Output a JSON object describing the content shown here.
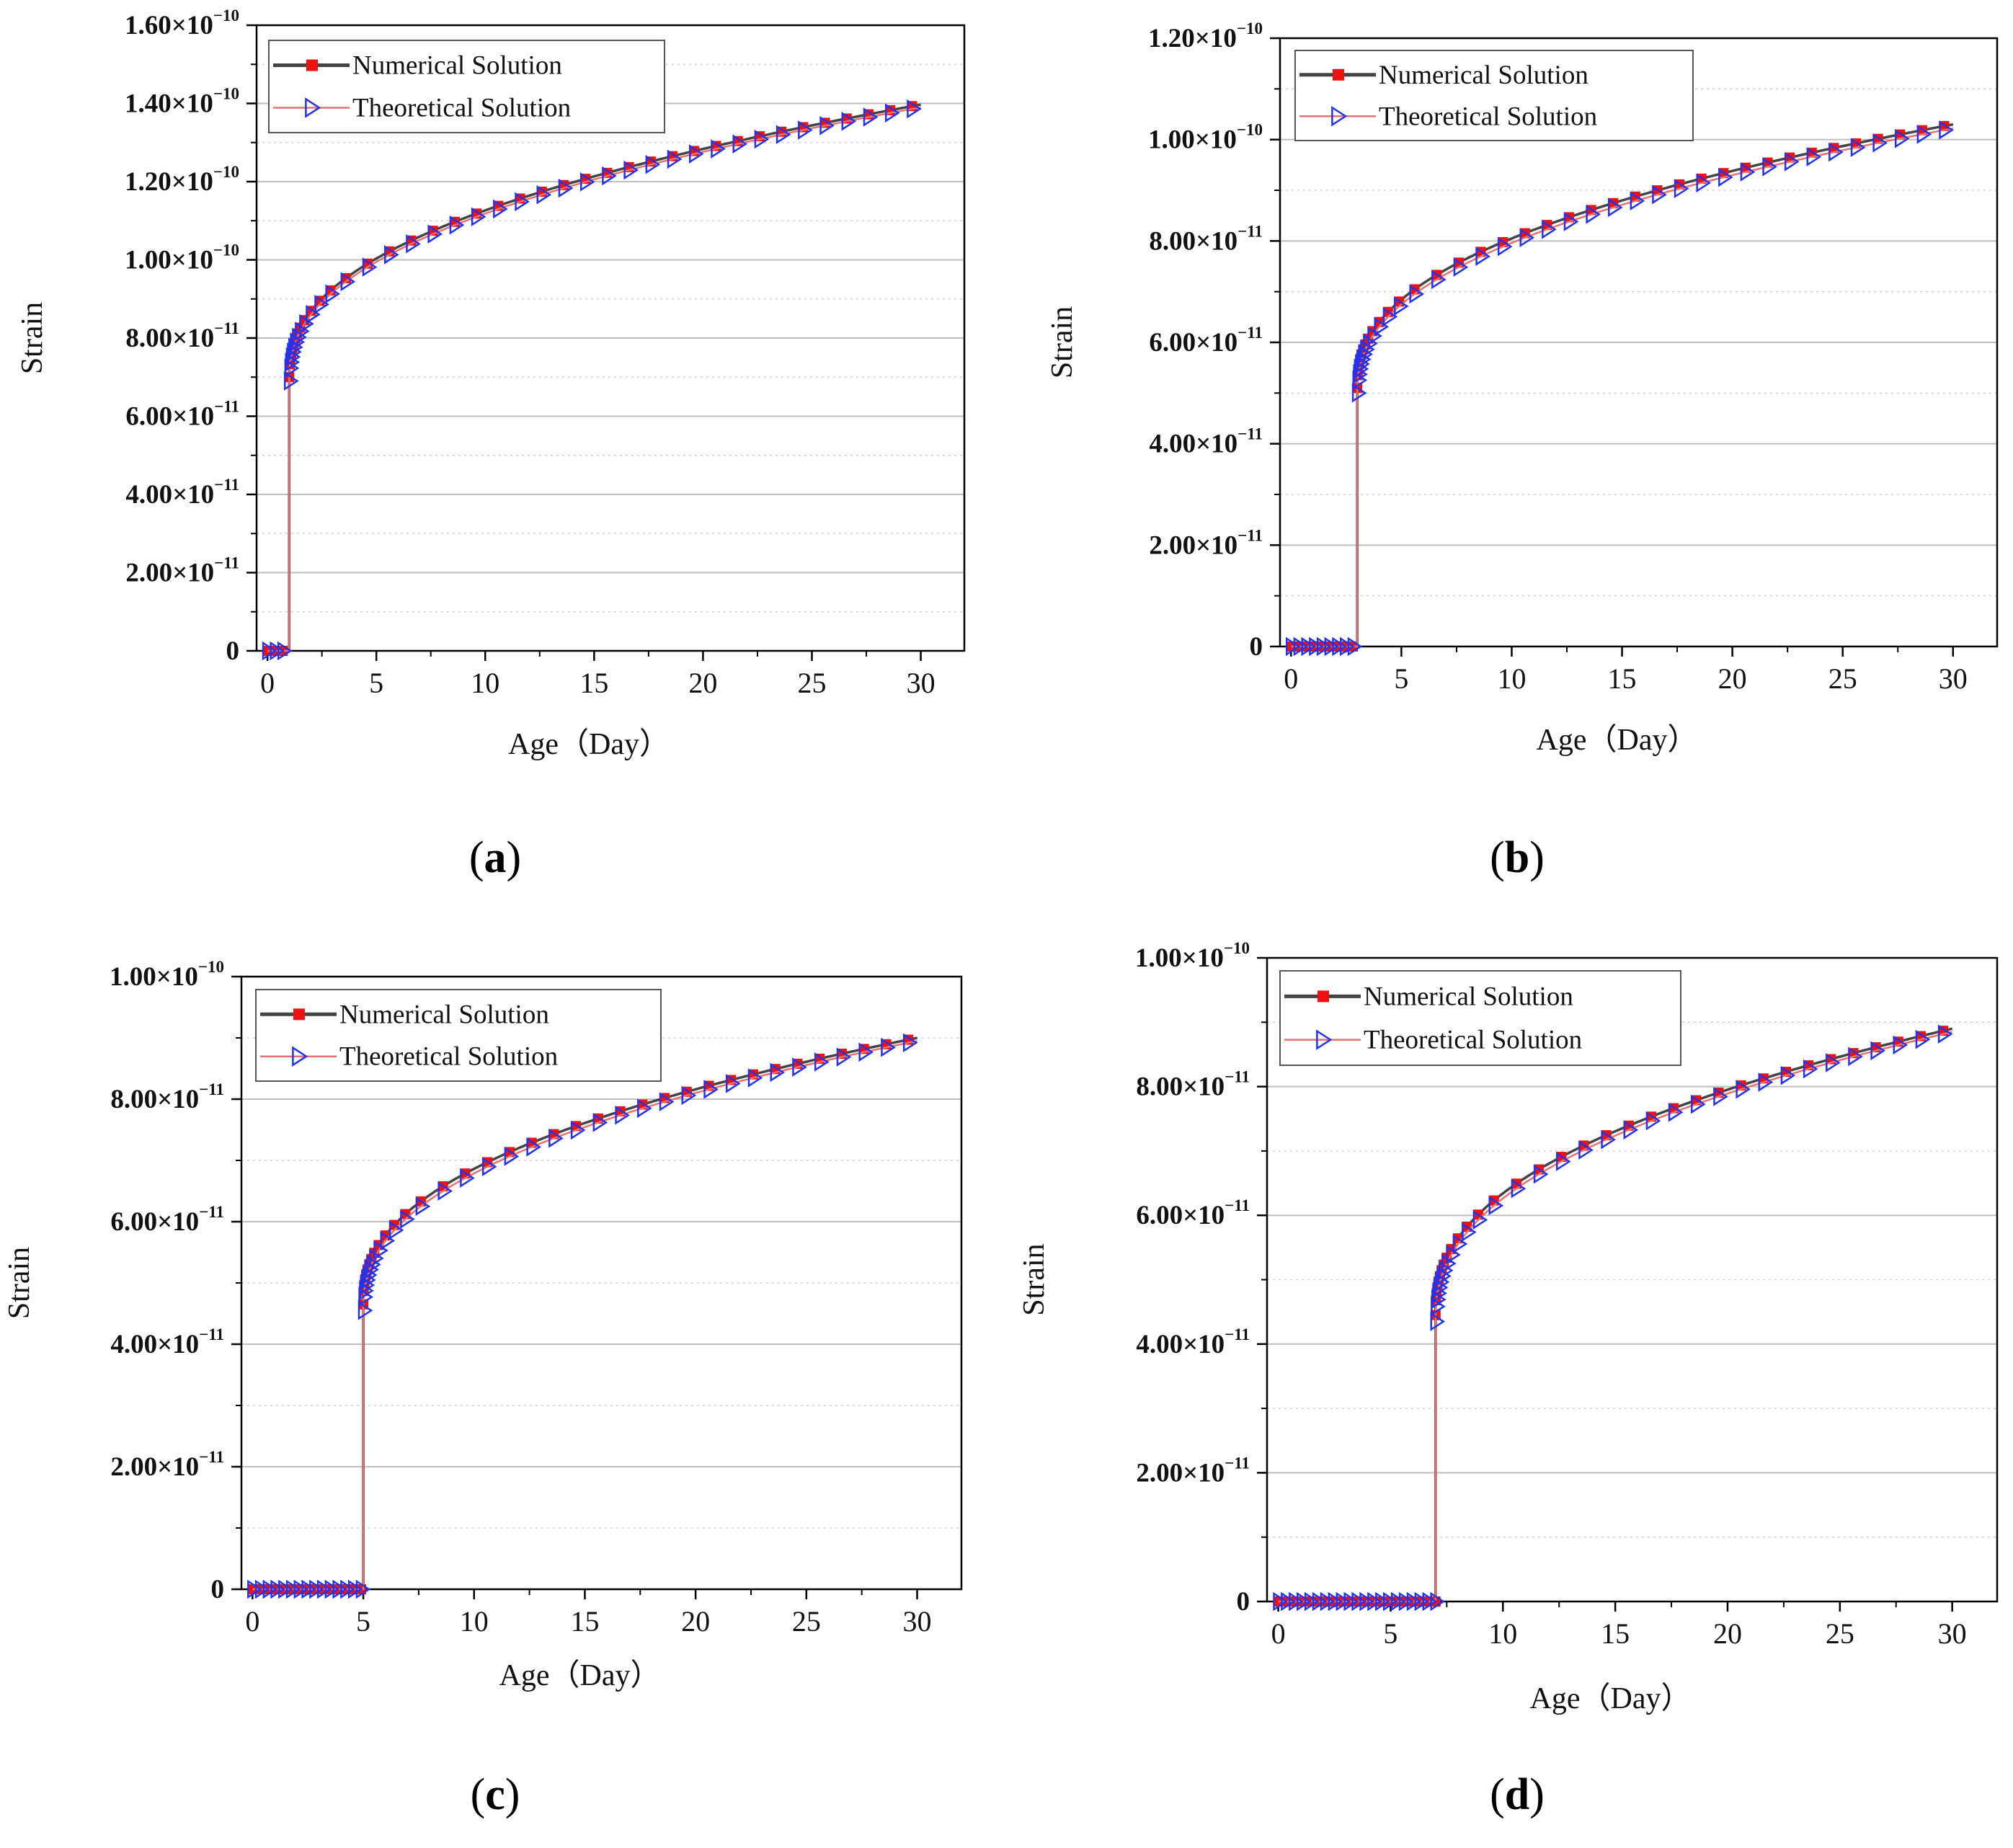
{
  "colors": {
    "numerical_line": "#444444",
    "numerical_marker": "#ee1111",
    "theoretical_line": "#e87070",
    "theoretical_marker": "#2233ee",
    "grid_major": "#bfbfbf",
    "grid_minor": "#d0d0d0",
    "axis": "#000000"
  },
  "chart_data": [
    {
      "type": "line",
      "panel_label": {
        "open": "(",
        "letter": "a",
        "close": ")"
      },
      "xlabel": "Age（Day）",
      "ylabel": "Strain",
      "xlim": [
        -0.5,
        32
      ],
      "ylim": [
        0,
        1.6e-10
      ],
      "xticks": [
        0,
        5,
        10,
        15,
        20,
        25,
        30
      ],
      "yticks": [
        {
          "value": 0,
          "mantissa": "0",
          "exp": ""
        },
        {
          "value": 2e-11,
          "mantissa": "2.00×10",
          "exp": "−11"
        },
        {
          "value": 4e-11,
          "mantissa": "4.00×10",
          "exp": "−11"
        },
        {
          "value": 6e-11,
          "mantissa": "6.00×10",
          "exp": "−11"
        },
        {
          "value": 8e-11,
          "mantissa": "8.00×10",
          "exp": "−11"
        },
        {
          "value": 1e-10,
          "mantissa": "1.00×10",
          "exp": "−10"
        },
        {
          "value": 1.2e-10,
          "mantissa": "1.20×10",
          "exp": "−10"
        },
        {
          "value": 1.4e-10,
          "mantissa": "1.40×10",
          "exp": "−10"
        },
        {
          "value": 1.6e-10,
          "mantissa": "1.60×10",
          "exp": "−10"
        }
      ],
      "grid": true,
      "legend_position": "top-left",
      "series": [
        {
          "name": "Numerical Solution",
          "load_age": 1,
          "initial": 7e-11,
          "final": 1.397e-10
        },
        {
          "name": "Theoretical Solution",
          "load_age": 1,
          "initial": 6.9e-11,
          "final": 1.39e-10
        }
      ]
    },
    {
      "type": "line",
      "panel_label": {
        "open": "(",
        "letter": "b",
        "close": ")"
      },
      "xlabel": "Age（Day）",
      "ylabel": "Strain",
      "xlim": [
        -0.5,
        32
      ],
      "ylim": [
        0,
        1.2e-10
      ],
      "xticks": [
        0,
        5,
        10,
        15,
        20,
        25,
        30
      ],
      "yticks": [
        {
          "value": 0,
          "mantissa": "0",
          "exp": ""
        },
        {
          "value": 2e-11,
          "mantissa": "2.00×10",
          "exp": "−11"
        },
        {
          "value": 4e-11,
          "mantissa": "4.00×10",
          "exp": "−11"
        },
        {
          "value": 6e-11,
          "mantissa": "6.00×10",
          "exp": "−11"
        },
        {
          "value": 8e-11,
          "mantissa": "8.00×10",
          "exp": "−11"
        },
        {
          "value": 1e-10,
          "mantissa": "1.00×10",
          "exp": "−10"
        },
        {
          "value": 1.2e-10,
          "mantissa": "1.20×10",
          "exp": "−10"
        }
      ],
      "grid": true,
      "legend_position": "top-left",
      "series": [
        {
          "name": "Numerical Solution",
          "load_age": 3,
          "initial": 5.1e-11,
          "final": 1.03e-10
        },
        {
          "name": "Theoretical Solution",
          "load_age": 3,
          "initial": 5e-11,
          "final": 1.022e-10
        }
      ]
    },
    {
      "type": "line",
      "panel_label": {
        "open": "(",
        "letter": "c",
        "close": ")"
      },
      "xlabel": "Age（Day）",
      "ylabel": "Strain",
      "xlim": [
        -0.5,
        32
      ],
      "ylim": [
        0,
        1e-10
      ],
      "xticks": [
        0,
        5,
        10,
        15,
        20,
        25,
        30
      ],
      "yticks": [
        {
          "value": 0,
          "mantissa": "0",
          "exp": ""
        },
        {
          "value": 2e-11,
          "mantissa": "2.00×10",
          "exp": "−11"
        },
        {
          "value": 4e-11,
          "mantissa": "4.00×10",
          "exp": "−11"
        },
        {
          "value": 6e-11,
          "mantissa": "6.00×10",
          "exp": "−11"
        },
        {
          "value": 8e-11,
          "mantissa": "8.00×10",
          "exp": "−11"
        },
        {
          "value": 1e-10,
          "mantissa": "1.00×10",
          "exp": "−10"
        }
      ],
      "grid": true,
      "legend_position": "top-left",
      "series": [
        {
          "name": "Numerical Solution",
          "load_age": 5,
          "initial": 4.65e-11,
          "final": 9e-11
        },
        {
          "name": "Theoretical Solution",
          "load_age": 5,
          "initial": 4.55e-11,
          "final": 8.95e-11
        }
      ]
    },
    {
      "type": "line",
      "panel_label": {
        "open": "(",
        "letter": "d",
        "close": ")"
      },
      "xlabel": "Age（Day）",
      "ylabel": "Strain",
      "xlim": [
        -0.5,
        32
      ],
      "ylim": [
        0,
        1e-10
      ],
      "xticks": [
        0,
        5,
        10,
        15,
        20,
        25,
        30
      ],
      "yticks": [
        {
          "value": 0,
          "mantissa": "0",
          "exp": ""
        },
        {
          "value": 2e-11,
          "mantissa": "2.00×10",
          "exp": "−11"
        },
        {
          "value": 4e-11,
          "mantissa": "4.00×10",
          "exp": "−11"
        },
        {
          "value": 6e-11,
          "mantissa": "6.00×10",
          "exp": "−11"
        },
        {
          "value": 8e-11,
          "mantissa": "8.00×10",
          "exp": "−11"
        },
        {
          "value": 1e-10,
          "mantissa": "1.00×10",
          "exp": "−10"
        }
      ],
      "grid": true,
      "legend_position": "top-left",
      "series": [
        {
          "name": "Numerical Solution",
          "load_age": 7,
          "initial": 4.45e-11,
          "final": 8.9e-11
        },
        {
          "name": "Theoretical Solution",
          "load_age": 7,
          "initial": 4.35e-11,
          "final": 8.85e-11
        }
      ]
    }
  ]
}
